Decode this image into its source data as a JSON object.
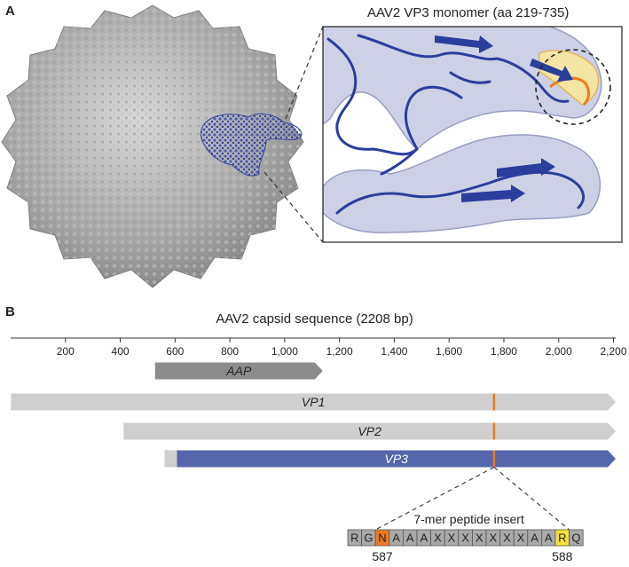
{
  "panel_a": {
    "letter": "A",
    "inset_title": "AAV2 VP3 monomer (aa 219-735)"
  },
  "panel_b": {
    "letter": "B",
    "title": "AAV2 capsid sequence (2208 bp)",
    "axis": {
      "min": 0,
      "max": 2208,
      "ticks": [
        {
          "value": 200,
          "label": "200"
        },
        {
          "value": 400,
          "label": "400"
        },
        {
          "value": 600,
          "label": "600"
        },
        {
          "value": 800,
          "label": "800"
        },
        {
          "value": 1000,
          "label": "1,000"
        },
        {
          "value": 1200,
          "label": "1,200"
        },
        {
          "value": 1400,
          "label": "1,400"
        },
        {
          "value": 1600,
          "label": "1,600"
        },
        {
          "value": 1800,
          "label": "1,800"
        },
        {
          "value": 2000,
          "label": "2,000"
        },
        {
          "value": 2200,
          "label": "2,200"
        }
      ]
    },
    "genes": [
      {
        "name": "AAP",
        "start": 527,
        "end": 1139,
        "color": "#8c8c8c",
        "text_color": "#222222"
      },
      {
        "name": "VP1",
        "start": 1,
        "end": 2208,
        "color": "#cfcfcf",
        "text_color": "#222222"
      },
      {
        "name": "VP2",
        "start": 412,
        "end": 2208,
        "color": "#cfcfcf",
        "text_color": "#222222"
      },
      {
        "name": "VP3",
        "start": 607,
        "end": 2208,
        "color": "#5566aa",
        "text_color": "#ffffff"
      }
    ],
    "insert_marker_bp": 1764,
    "insert": {
      "title": "7-mer peptide insert",
      "sequence": [
        "R",
        "G",
        "N",
        "A",
        "A",
        "A",
        "X",
        "X",
        "X",
        "X",
        "X",
        "X",
        "X",
        "A",
        "A",
        "R",
        "Q"
      ],
      "highlight_orange_index": 2,
      "highlight_yellow_index": 15,
      "left_number": "587",
      "right_number": "588"
    }
  },
  "colors": {
    "vp3_blue": "#5566aa",
    "insert_orange": "#ee7a22",
    "insert_yellow": "#f4e23a",
    "residue_gray": "#a9a9a9"
  }
}
